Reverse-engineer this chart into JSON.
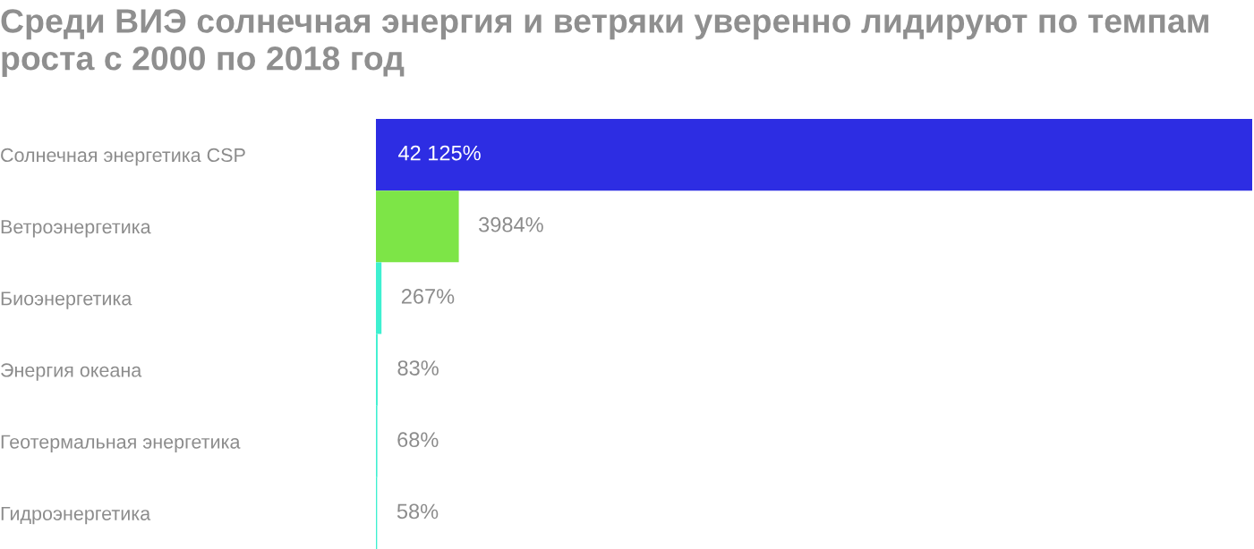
{
  "chart_data": {
    "type": "bar",
    "orientation": "horizontal",
    "title": "Среди ВИЭ солнечная энергия и ветряки уверенно лидируют по темпам роста с 2000 по 2018 год",
    "categories": [
      "Солнечная энергетика CSP",
      "Ветроэнергетика",
      "Биоэнергетика",
      "Энергия океана",
      "Геотермальная энергетика",
      "Гидроэнергетика"
    ],
    "values": [
      42125,
      3984,
      267,
      83,
      68,
      58
    ],
    "colors": [
      "#2d2de3",
      "#7de547",
      "#3ef0d0",
      "#3ef0d0",
      "#3ef0d0",
      "#3ef0d0"
    ],
    "value_labels": [
      "42 125%",
      "3984%",
      "267%",
      "83%",
      "68%",
      "58%"
    ],
    "grid": false,
    "legend": false
  }
}
